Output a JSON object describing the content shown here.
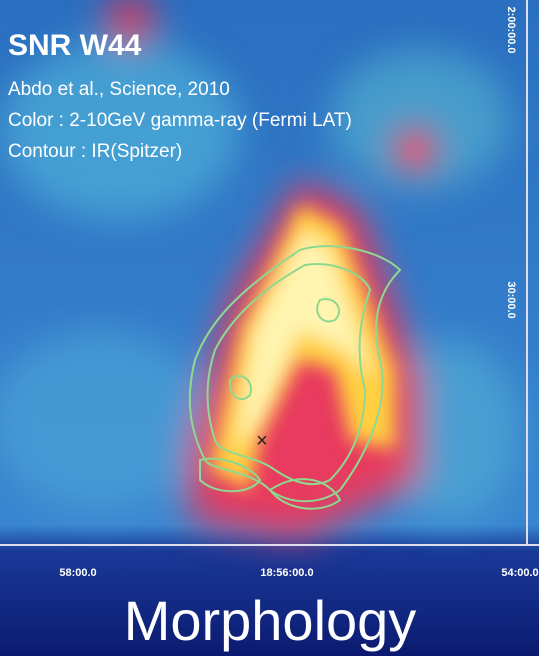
{
  "title": "SNR W44",
  "credits": [
    "Abdo et al., Science, 2010",
    "Color : 2-10GeV gamma-ray (Fermi LAT)",
    "Contour : IR(Spitzer)"
  ],
  "axis_labels": {
    "right": [
      "2:00:00.0",
      "30:00.0"
    ],
    "bottom": [
      "58:00.0",
      "18:56:00.0",
      "54:00.0"
    ]
  },
  "caption": "Morphology"
}
